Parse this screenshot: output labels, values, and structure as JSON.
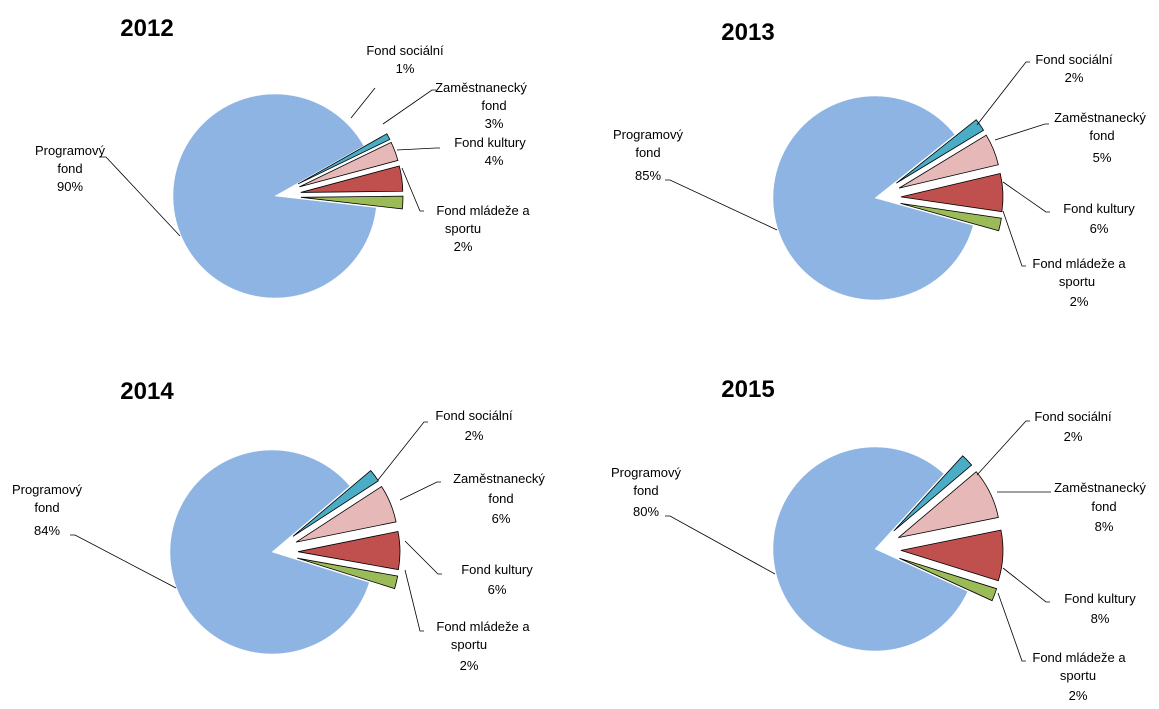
{
  "chart_data": [
    {
      "type": "pie",
      "title": "2012",
      "slices": [
        {
          "label": "Programový fond",
          "value": 90,
          "value_label": "90%",
          "color": "#8EB4E3"
        },
        {
          "label": "Fond sociální",
          "value": 1,
          "value_label": "1%",
          "color": "#4BACC6"
        },
        {
          "label": "Zaměstnanecký fond",
          "value": 3,
          "value_label": "3%",
          "color": "#E6B9B8"
        },
        {
          "label": "Fond kultury",
          "value": 4,
          "value_label": "4%",
          "color": "#C0504D"
        },
        {
          "label": "Fond mládeže a sportu",
          "value": 2,
          "value_label": "2%",
          "color": "#9BBB59"
        }
      ]
    },
    {
      "type": "pie",
      "title": "2013",
      "slices": [
        {
          "label": "Programový fond",
          "value": 85,
          "value_label": "85%",
          "color": "#8EB4E3"
        },
        {
          "label": "Fond sociální",
          "value": 2,
          "value_label": "2%",
          "color": "#4BACC6"
        },
        {
          "label": "Zaměstnanecký fond",
          "value": 5,
          "value_label": "5%",
          "color": "#E6B9B8"
        },
        {
          "label": "Fond kultury",
          "value": 6,
          "value_label": "6%",
          "color": "#C0504D"
        },
        {
          "label": "Fond mládeže a sportu",
          "value": 2,
          "value_label": "2%",
          "color": "#9BBB59"
        }
      ]
    },
    {
      "type": "pie",
      "title": "2014",
      "slices": [
        {
          "label": "Programový fond",
          "value": 84,
          "value_label": "84%",
          "color": "#8EB4E3"
        },
        {
          "label": "Fond sociální",
          "value": 2,
          "value_label": "2%",
          "color": "#4BACC6"
        },
        {
          "label": "Zaměstnanecký fond",
          "value": 6,
          "value_label": "6%",
          "color": "#E6B9B8"
        },
        {
          "label": "Fond kultury",
          "value": 6,
          "value_label": "6%",
          "color": "#C0504D"
        },
        {
          "label": "Fond mládeže a sportu",
          "value": 2,
          "value_label": "2%",
          "color": "#9BBB59"
        }
      ]
    },
    {
      "type": "pie",
      "title": "2015",
      "slices": [
        {
          "label": "Programový fond",
          "value": 80,
          "value_label": "80%",
          "color": "#8EB4E3"
        },
        {
          "label": "Fond sociální",
          "value": 2,
          "value_label": "2%",
          "color": "#4BACC6"
        },
        {
          "label": "Zaměstnanecký fond",
          "value": 8,
          "value_label": "8%",
          "color": "#E6B9B8"
        },
        {
          "label": "Fond kultury",
          "value": 8,
          "value_label": "8%",
          "color": "#C0504D"
        },
        {
          "label": "Fond mládeže a sportu",
          "value": 2,
          "value_label": "2%",
          "color": "#9BBB59"
        }
      ]
    }
  ]
}
